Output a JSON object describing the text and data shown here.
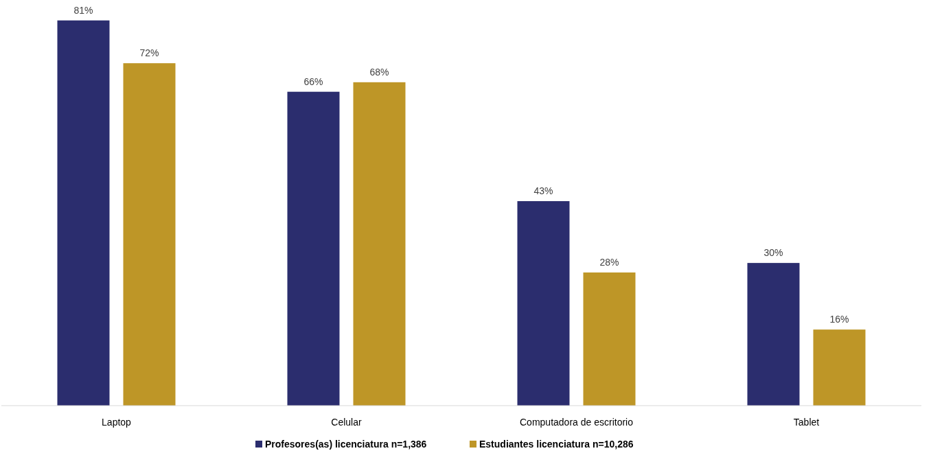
{
  "chart_data": {
    "type": "bar",
    "categories": [
      "Laptop",
      "Celular",
      "Computadora de escritorio",
      "Tablet"
    ],
    "series": [
      {
        "name": "Profesores(as) licenciatura n=1,386",
        "color": "#2b2d6e",
        "values": [
          81,
          66,
          43,
          30
        ],
        "value_labels": [
          "81%",
          "66%",
          "43%",
          "30%"
        ]
      },
      {
        "name": "Estudiantes licenciatura n=10,286",
        "color": "#be9627",
        "values": [
          72,
          68,
          28,
          16
        ],
        "value_labels": [
          "72%",
          "68%",
          "28%",
          "16%"
        ]
      }
    ],
    "legend": "bottom",
    "grid": false
  }
}
